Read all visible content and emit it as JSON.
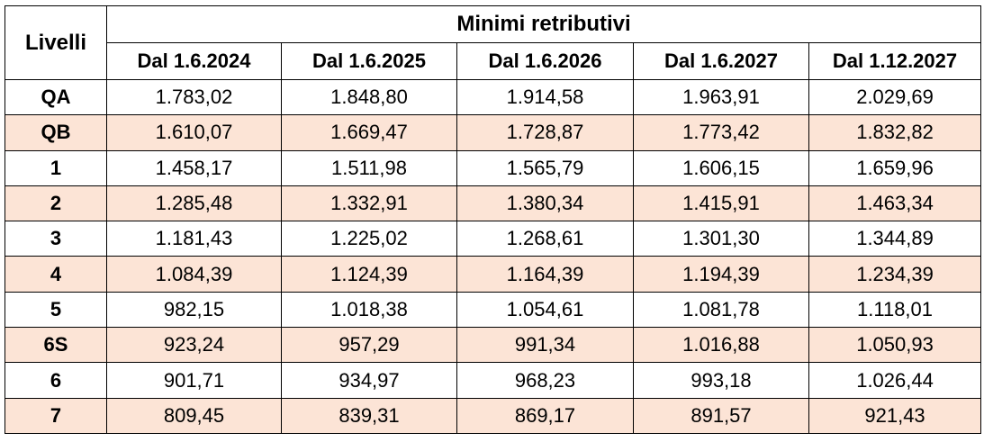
{
  "table": {
    "level_header": "Livelli",
    "group_header": "Minimi retributivi",
    "columns": [
      "Dal 1.6.2024",
      "Dal 1.6.2025",
      "Dal 1.6.2026",
      "Dal 1.6.2027",
      "Dal 1.12.2027"
    ],
    "shaded_row_color": "#fce4d6",
    "rows": [
      {
        "level": "QA",
        "values": [
          "1.783,02",
          "1.848,80",
          "1.914,58",
          "1.963,91",
          "2.029,69"
        ]
      },
      {
        "level": "QB",
        "values": [
          "1.610,07",
          "1.669,47",
          "1.728,87",
          "1.773,42",
          "1.832,82"
        ]
      },
      {
        "level": "1",
        "values": [
          "1.458,17",
          "1.511,98",
          "1.565,79",
          "1.606,15",
          "1.659,96"
        ]
      },
      {
        "level": "2",
        "values": [
          "1.285,48",
          "1.332,91",
          "1.380,34",
          "1.415,91",
          "1.463,34"
        ]
      },
      {
        "level": "3",
        "values": [
          "1.181,43",
          "1.225,02",
          "1.268,61",
          "1.301,30",
          "1.344,89"
        ]
      },
      {
        "level": "4",
        "values": [
          "1.084,39",
          "1.124,39",
          "1.164,39",
          "1.194,39",
          "1.234,39"
        ]
      },
      {
        "level": "5",
        "values": [
          "982,15",
          "1.018,38",
          "1.054,61",
          "1.081,78",
          "1.118,01"
        ]
      },
      {
        "level": "6S",
        "values": [
          "923,24",
          "957,29",
          "991,34",
          "1.016,88",
          "1.050,93"
        ]
      },
      {
        "level": "6",
        "values": [
          "901,71",
          "934,97",
          "968,23",
          "993,18",
          "1.026,44"
        ]
      },
      {
        "level": "7",
        "values": [
          "809,45",
          "839,31",
          "869,17",
          "891,57",
          "921,43"
        ]
      }
    ]
  }
}
